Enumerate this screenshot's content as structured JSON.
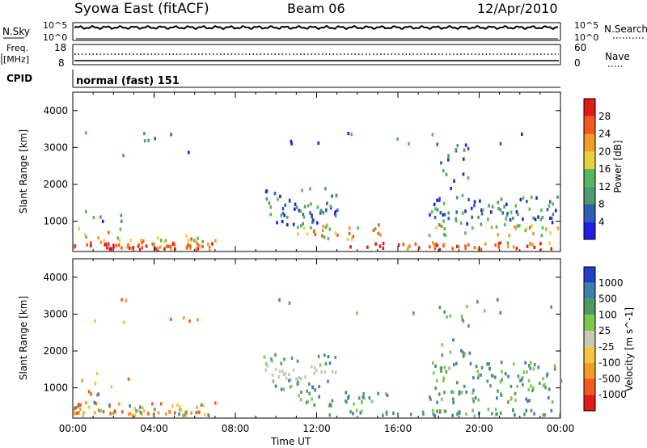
{
  "header": {
    "title_left": "Syowa East (fitACF)",
    "title_center": "Beam 06",
    "title_right": "12/Apr/2010"
  },
  "top_panels": {
    "nsky_label": "N.Sky",
    "nsearch_label": "N.Search",
    "count_axis_ticks_left": [
      "10^5",
      "10^0"
    ],
    "count_axis_ticks_right": [
      "10^5",
      "10^0"
    ],
    "freq_label": [
      "Freq.",
      "[MHz]"
    ],
    "freq_ticks": [
      "18",
      "8"
    ],
    "nave_label": "Nave",
    "nave_ticks": [
      "60",
      "0"
    ],
    "cpid_label": "CPID",
    "cpid_text": "normal (fast) 151"
  },
  "colors": {
    "power_scale": [
      "#1f1fe8",
      "#2f5fb0",
      "#4f9a6e",
      "#54b85c",
      "#e8d23c",
      "#f29a2a",
      "#f05a1c",
      "#e01a14"
    ],
    "velocity_scale": [
      "#2040c8",
      "#3f7fb0",
      "#4f9a60",
      "#7fc84f",
      "#c8c8b8",
      "#f4c43c",
      "#f29a2a",
      "#f05a1c",
      "#e01a14"
    ]
  },
  "chart_data": [
    {
      "type": "heatmap",
      "name": "power",
      "ylabel": "Slant Range [km]",
      "xlabel": "",
      "x_ticks": [
        "00:00",
        "04:00",
        "08:00",
        "12:00",
        "16:00",
        "20:00",
        "00:00"
      ],
      "x_range_hours": [
        0,
        24
      ],
      "y_ticks": [
        "1000",
        "2000",
        "3000",
        "4000"
      ],
      "y_range_km": [
        180,
        4500
      ],
      "colorbar": {
        "label": "Power [dB]",
        "ticks": [
          "4",
          "8",
          "12",
          "16",
          "20",
          "24",
          "28"
        ],
        "range": [
          0,
          32
        ]
      }
    },
    {
      "type": "heatmap",
      "name": "velocity",
      "ylabel": "Slant Range [km]",
      "xlabel": "Time UT",
      "x_ticks": [
        "00:00",
        "04:00",
        "08:00",
        "12:00",
        "16:00",
        "20:00",
        "00:00"
      ],
      "x_range_hours": [
        0,
        24
      ],
      "y_ticks": [
        "1000",
        "2000",
        "3000",
        "4000"
      ],
      "y_range_km": [
        180,
        4500
      ],
      "colorbar": {
        "label": "Velocity [m s^-1]",
        "ticks": [
          "1000",
          "500",
          "100",
          "25",
          "-25",
          "-100",
          "-500",
          "-1000"
        ]
      }
    }
  ]
}
